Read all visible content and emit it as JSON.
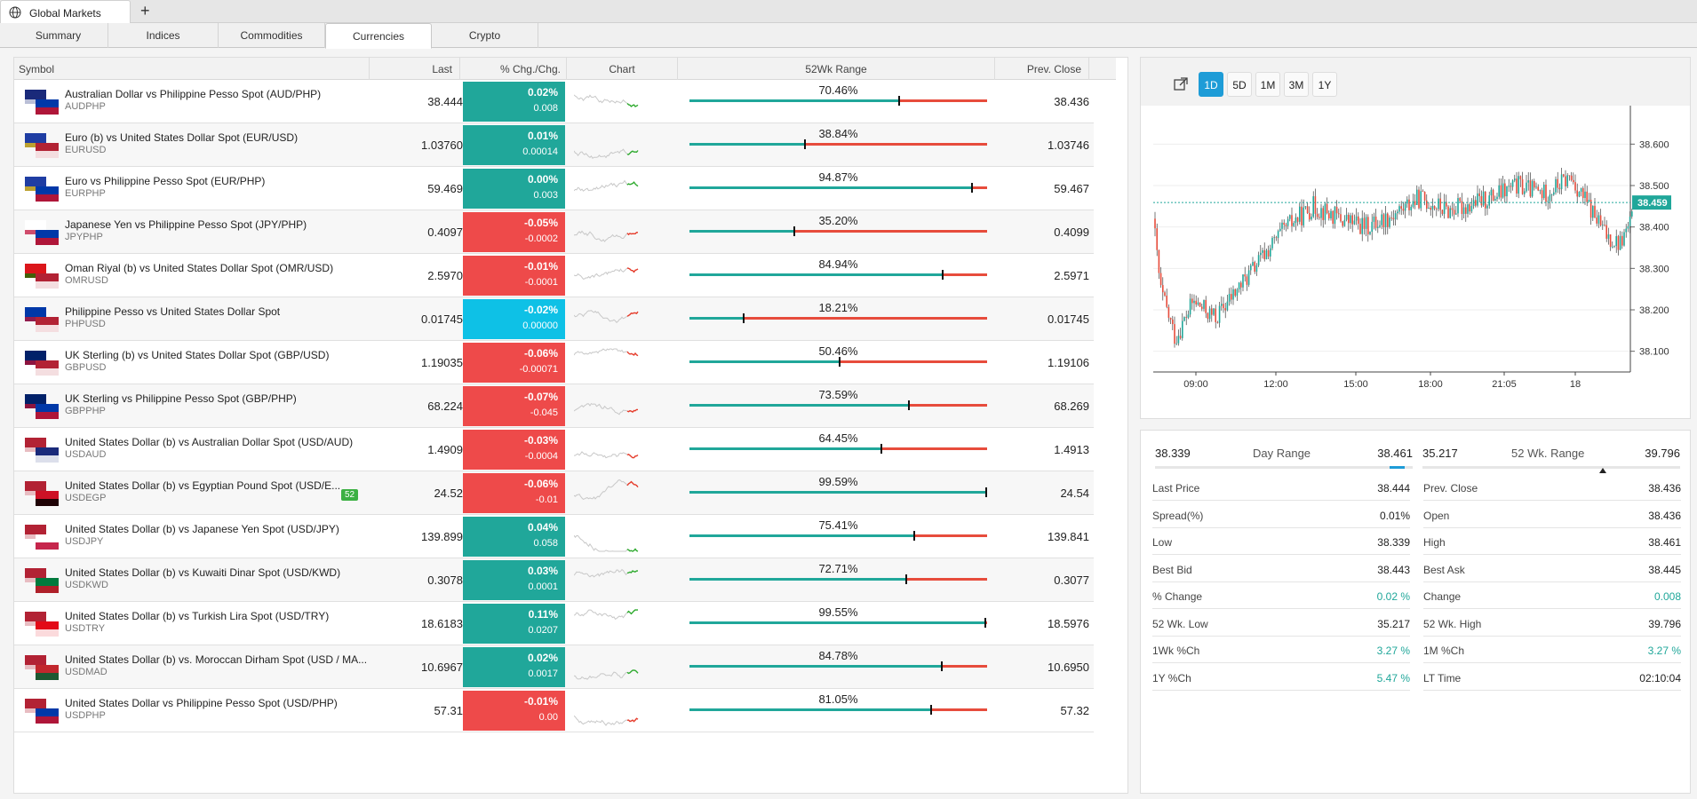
{
  "window": {
    "title": "Global Markets",
    "new_tab": "+"
  },
  "tabs": [
    "Summary",
    "Indices",
    "Commodities",
    "Currencies",
    "Crypto"
  ],
  "table": {
    "headers": {
      "symbol": "Symbol",
      "last": "Last",
      "chg": "% Chg./Chg.",
      "chart": "Chart",
      "range": "52Wk Range",
      "prev": "Prev. Close"
    },
    "rows": [
      {
        "name": "Australian Dollar vs Philippine Pesso Spot (AUD/PHP)",
        "code": "AUDPHP",
        "last": "38.444",
        "pct": "0.02%",
        "abs": "0.008",
        "dir": "up",
        "range_pct": "70.46%",
        "range_val": 0.7046,
        "prev": "38.436"
      },
      {
        "name": "Euro (b) vs United States Dollar Spot (EUR/USD)",
        "code": "EURUSD",
        "last": "1.03760",
        "pct": "0.01%",
        "abs": "0.00014",
        "dir": "up",
        "range_pct": "38.84%",
        "range_val": 0.3884,
        "prev": "1.03746"
      },
      {
        "name": "Euro vs Philippine Pesso Spot (EUR/PHP)",
        "code": "EURPHP",
        "last": "59.469",
        "pct": "0.00%",
        "abs": "0.003",
        "dir": "up",
        "range_pct": "94.87%",
        "range_val": 0.9487,
        "prev": "59.467"
      },
      {
        "name": "Japanese Yen vs Philippine Pesso Spot (JPY/PHP)",
        "code": "JPYPHP",
        "last": "0.4097",
        "pct": "-0.05%",
        "abs": "-0.0002",
        "dir": "down",
        "range_pct": "35.20%",
        "range_val": 0.352,
        "prev": "0.4099"
      },
      {
        "name": "Oman Riyal (b) vs United States Dollar Spot (OMR/USD)",
        "code": "OMRUSD",
        "last": "2.5970",
        "pct": "-0.01%",
        "abs": "-0.0001",
        "dir": "down",
        "range_pct": "84.94%",
        "range_val": 0.8494,
        "prev": "2.5971"
      },
      {
        "name": "Philippine Pesso vs United States Dollar Spot",
        "code": "PHPUSD",
        "last": "0.01745",
        "pct": "-0.02%",
        "abs": "0.00000",
        "dir": "flat",
        "range_pct": "18.21%",
        "range_val": 0.1821,
        "prev": "0.01745"
      },
      {
        "name": "UK Sterling (b) vs United States Dollar Spot (GBP/USD)",
        "code": "GBPUSD",
        "last": "1.19035",
        "pct": "-0.06%",
        "abs": "-0.00071",
        "dir": "down",
        "range_pct": "50.46%",
        "range_val": 0.5046,
        "prev": "1.19106"
      },
      {
        "name": "UK Sterling vs Philippine Pesso Spot (GBP/PHP)",
        "code": "GBPPHP",
        "last": "68.224",
        "pct": "-0.07%",
        "abs": "-0.045",
        "dir": "down",
        "range_pct": "73.59%",
        "range_val": 0.7359,
        "prev": "68.269"
      },
      {
        "name": "United States Dollar (b) vs Australian Dollar Spot (USD/AUD)",
        "code": "USDAUD",
        "last": "1.4909",
        "pct": "-0.03%",
        "abs": "-0.0004",
        "dir": "down",
        "range_pct": "64.45%",
        "range_val": 0.6445,
        "prev": "1.4913"
      },
      {
        "name": "United States Dollar (b) vs Egyptian Pound Spot (USD/E...",
        "code": "USDEGP",
        "last": "24.52",
        "pct": "-0.06%",
        "abs": "-0.01",
        "dir": "down",
        "range_pct": "99.59%",
        "range_val": 0.9959,
        "prev": "24.54",
        "badge": "52"
      },
      {
        "name": "United States Dollar (b) vs Japanese Yen Spot (USD/JPY)",
        "code": "USDJPY",
        "last": "139.899",
        "pct": "0.04%",
        "abs": "0.058",
        "dir": "up",
        "range_pct": "75.41%",
        "range_val": 0.7541,
        "prev": "139.841"
      },
      {
        "name": "United States Dollar (b) vs Kuwaiti Dinar Spot (USD/KWD)",
        "code": "USDKWD",
        "last": "0.3078",
        "pct": "0.03%",
        "abs": "0.0001",
        "dir": "up",
        "range_pct": "72.71%",
        "range_val": 0.7271,
        "prev": "0.3077"
      },
      {
        "name": "United States Dollar (b) vs Turkish Lira Spot (USD/TRY)",
        "code": "USDTRY",
        "last": "18.6183",
        "pct": "0.11%",
        "abs": "0.0207",
        "dir": "up",
        "range_pct": "99.55%",
        "range_val": 0.9955,
        "prev": "18.5976"
      },
      {
        "name": "United States Dollar (b) vs. Moroccan Dirham Spot (USD / MA...",
        "code": "USDMAD",
        "last": "10.6967",
        "pct": "0.02%",
        "abs": "0.0017",
        "dir": "up",
        "range_pct": "84.78%",
        "range_val": 0.8478,
        "prev": "10.6950"
      },
      {
        "name": "United States Dollar vs Philippine Pesso Spot (USD/PHP)",
        "code": "USDPHP",
        "last": "57.31",
        "pct": "-0.01%",
        "abs": "0.00",
        "dir": "down",
        "range_pct": "81.05%",
        "range_val": 0.8105,
        "prev": "57.32"
      }
    ]
  },
  "chart": {
    "periods": [
      "1D",
      "5D",
      "1M",
      "3M",
      "1Y"
    ],
    "active_period": "1D",
    "y_ticks": [
      "38.600",
      "38.500",
      "38.400",
      "38.300",
      "38.200",
      "38.100"
    ],
    "x_ticks": [
      "09:00",
      "12:00",
      "15:00",
      "18:00",
      "21:05",
      "18"
    ],
    "current_price": "38.459",
    "colors": {
      "up": "#20a79a",
      "down": "#e74c3c",
      "accent": "#1e9cd7"
    }
  },
  "stats": {
    "day_range": {
      "low": "38.339",
      "label": "Day Range",
      "high": "38.461",
      "pos": 0.97
    },
    "wk52_range": {
      "low": "35.217",
      "label": "52 Wk. Range",
      "high": "39.796",
      "pos": 0.7
    },
    "left": [
      {
        "label": "Last Price",
        "value": "38.444"
      },
      {
        "label": "Spread(%)",
        "value": "0.01%"
      },
      {
        "label": "Low",
        "value": "38.339"
      },
      {
        "label": "Best Bid",
        "value": "38.443"
      },
      {
        "label": "% Change",
        "value": "0.02 %",
        "green": true
      },
      {
        "label": "52 Wk. Low",
        "value": "35.217"
      },
      {
        "label": "1Wk %Ch",
        "value": "3.27 %",
        "green": true
      },
      {
        "label": "1Y %Ch",
        "value": "5.47 %",
        "green": true
      }
    ],
    "right": [
      {
        "label": "Prev. Close",
        "value": "38.436"
      },
      {
        "label": "Open",
        "value": "38.436"
      },
      {
        "label": "High",
        "value": "38.461"
      },
      {
        "label": "Best Ask",
        "value": "38.445"
      },
      {
        "label": "Change",
        "value": "0.008",
        "green": true
      },
      {
        "label": "52 Wk. High",
        "value": "39.796"
      },
      {
        "label": "1M %Ch",
        "value": "3.27 %",
        "green": true
      },
      {
        "label": "LT Time",
        "value": "02:10:04"
      }
    ]
  }
}
